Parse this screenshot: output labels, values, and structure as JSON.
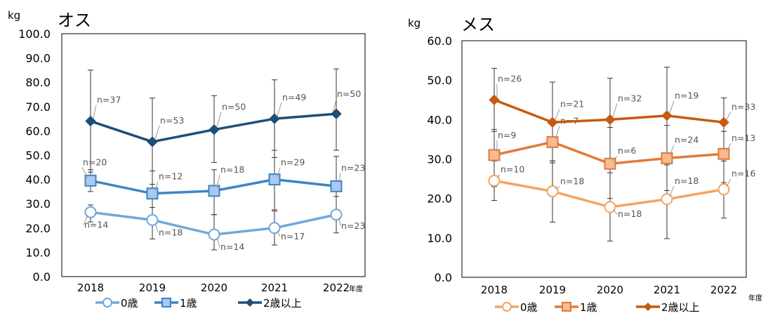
{
  "chart_data": [
    {
      "type": "line",
      "title": "オス",
      "ylabel": "kg",
      "xlabel": "",
      "x_unit": "年度",
      "categories": [
        "2018",
        "2019",
        "2020",
        "2021",
        "2022"
      ],
      "ylim": [
        0,
        100
      ],
      "yticks": [
        "0.0",
        "10.0",
        "20.0",
        "30.0",
        "40.0",
        "50.0",
        "60.0",
        "70.0",
        "80.0",
        "90.0",
        "100.0"
      ],
      "legend_position": "bottom",
      "grid": false,
      "series": [
        {
          "name": "0歳",
          "color": "#6fa8dc",
          "marker": "circle",
          "values": [
            26.5,
            23.3,
            17.3,
            20.0,
            25.5
          ],
          "error_low": [
            22.5,
            15.5,
            11.0,
            13.0,
            18.0
          ],
          "error_high": [
            29.5,
            28.5,
            25.5,
            27.0,
            33.0
          ],
          "labels": [
            "n=14",
            "n=18",
            "n=14",
            "n=17",
            "n=23"
          ]
        },
        {
          "name": "1歳",
          "color": "#3d85c6",
          "marker": "square",
          "values": [
            39.5,
            34.2,
            35.3,
            40.0,
            37.2
          ],
          "error_low": [
            35.0,
            24.0,
            25.5,
            27.5,
            24.5
          ],
          "error_high": [
            44.0,
            43.5,
            44.0,
            52.0,
            49.5
          ],
          "labels": [
            "n=20",
            "n=12",
            "n=18",
            "n=29",
            "n=23"
          ]
        },
        {
          "name": "2歳以上",
          "color": "#1f4e79",
          "marker": "diamond",
          "values": [
            64.0,
            55.5,
            60.5,
            65.0,
            67.0
          ],
          "error_low": [
            43.0,
            38.0,
            47.0,
            49.0,
            52.0
          ],
          "error_high": [
            85.0,
            73.5,
            74.5,
            81.0,
            85.5
          ],
          "labels": [
            "n=37",
            "n=53",
            "n=50",
            "n=49",
            "n=50"
          ]
        }
      ]
    },
    {
      "type": "line",
      "title": "メス",
      "ylabel": "kg",
      "xlabel": "",
      "x_unit": "年度",
      "categories": [
        "2018",
        "2019",
        "2020",
        "2021",
        "2022"
      ],
      "ylim": [
        0,
        60
      ],
      "yticks": [
        "0.0",
        "10.0",
        "20.0",
        "30.0",
        "40.0",
        "50.0",
        "60.0"
      ],
      "legend_position": "bottom",
      "grid": false,
      "series": [
        {
          "name": "0歳",
          "color": "#f4a460",
          "marker": "circle",
          "values": [
            24.5,
            21.8,
            17.8,
            19.8,
            22.3
          ],
          "error_low": [
            19.5,
            14.0,
            9.2,
            9.8,
            15.0
          ],
          "error_high": [
            29.5,
            29.5,
            26.5,
            29.8,
            29.5
          ],
          "labels": [
            "n=10",
            "n=18",
            "n=18",
            "n=18",
            "n=16"
          ]
        },
        {
          "name": "1歳",
          "color": "#e07b39",
          "marker": "square",
          "values": [
            31.0,
            34.3,
            28.8,
            30.2,
            31.3
          ],
          "error_low": [
            23.0,
            29.5,
            20.0,
            22.0,
            24.0
          ],
          "error_high": [
            37.5,
            40.0,
            38.0,
            38.5,
            37.0
          ],
          "labels": [
            "n=9",
            "n=7",
            "n=6",
            "n=24",
            "n=13"
          ]
        },
        {
          "name": "2歳以上",
          "color": "#c55a11",
          "marker": "diamond",
          "values": [
            45.0,
            39.3,
            40.0,
            41.0,
            39.3
          ],
          "error_low": [
            37.0,
            29.0,
            30.0,
            28.5,
            32.0
          ],
          "error_high": [
            53.0,
            49.5,
            50.5,
            53.3,
            45.5
          ],
          "labels": [
            "n=26",
            "n=21",
            "n=32",
            "n=19",
            "n=33"
          ]
        }
      ]
    }
  ]
}
